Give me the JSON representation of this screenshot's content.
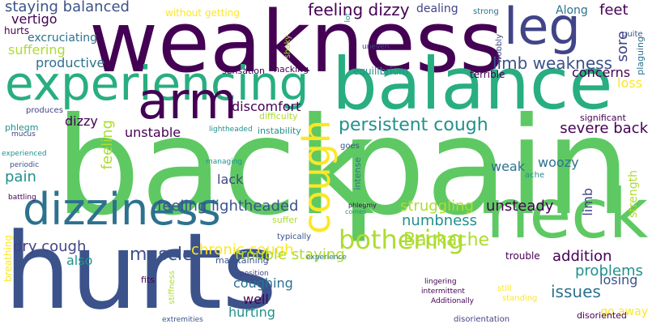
{
  "colors": {
    "background": "#ffffff",
    "dark_purple": "#440154",
    "indigo": "#3b528b",
    "deep_blue": "#414487",
    "blue_teal": "#2c728e",
    "teal": "#21918c",
    "sea_green": "#28ae80",
    "green": "#5ec962",
    "lime": "#addc30",
    "yellow": "#fde725"
  },
  "words": [
    "back",
    "pain",
    "neck",
    "hurts",
    "weakness",
    "balance",
    "experiencing",
    "dizziness",
    "arm",
    "leg",
    "cough",
    "neck",
    "bothering",
    "feeling dizzy",
    "persistent cough",
    "limb weakness",
    "feet",
    "sore",
    "muscle",
    "staying balanced",
    "dry cough",
    "chronic cough",
    "struggling",
    "unsteady",
    "numbness",
    "Backache",
    "trouble staying",
    "addition",
    "problems",
    "losing",
    "issues",
    "feeling lightheaded",
    "severe back",
    "coughing",
    "well",
    "hurting",
    "pain",
    "vertigo",
    "suffering",
    "productive",
    "excruciating",
    "discomfort",
    "dizzy",
    "feeling",
    "unstable",
    "weak",
    "woozy",
    "lack",
    "limb",
    "strength",
    "concerns",
    "loss",
    "dealing",
    "Along",
    "equilibrium",
    "terrible",
    "without getting",
    "hurts",
    "also",
    "go away",
    "significant",
    "plaguing",
    "quite",
    "strong",
    "uneven",
    "lot",
    "shaky",
    "sensation",
    "hacking",
    "difficulty",
    "instability",
    "lightheaded",
    "phlegm",
    "mucus",
    "periodic",
    "experienced",
    "battling",
    "managing",
    "intense",
    "phlegmy",
    "comes",
    "suffer",
    "typically",
    "maintaining",
    "experience",
    "position",
    "stiffness",
    "fits",
    "lingering",
    "intermittent",
    "Additionally",
    "still",
    "standing",
    "disoriented",
    "disorientation",
    "extremities",
    "breathing",
    "ache",
    "goes",
    "produces",
    "wobbly",
    "trouble"
  ]
}
